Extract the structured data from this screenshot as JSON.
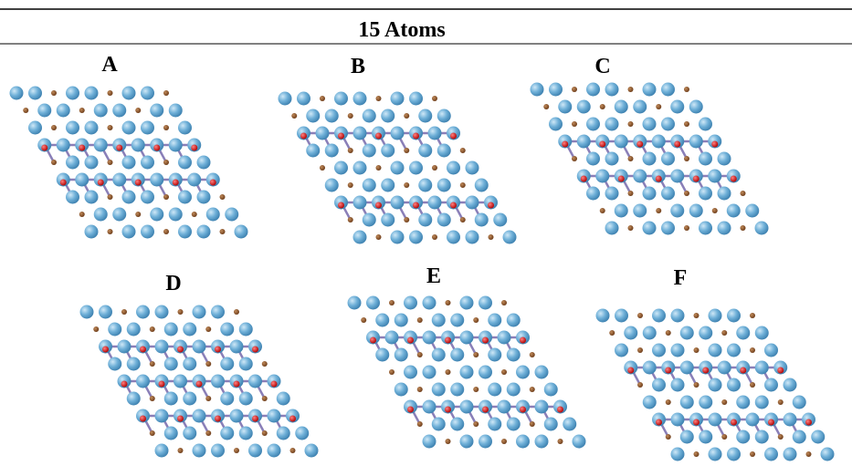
{
  "title": "15 Atoms",
  "panels": [
    "A",
    "B",
    "C",
    "D",
    "E",
    "F"
  ]
}
